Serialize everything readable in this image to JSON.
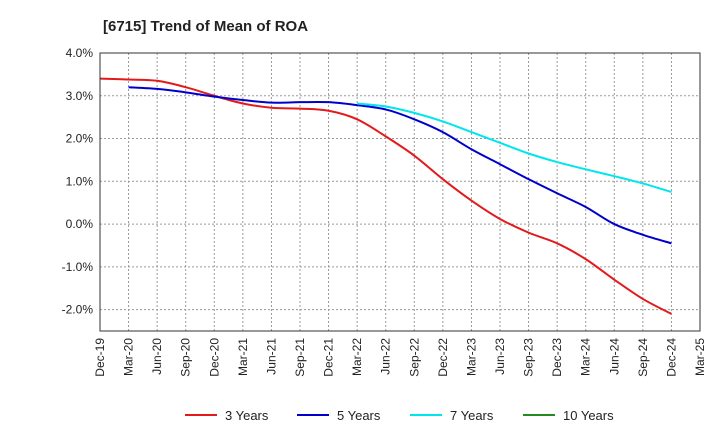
{
  "chart_data": {
    "type": "line",
    "title": "[6715]  Trend of Mean of ROA",
    "xlabel": "",
    "ylabel": "",
    "ylim": [
      -2.5,
      4.0
    ],
    "yticks": [
      4.0,
      3.0,
      2.0,
      1.0,
      0.0,
      -1.0,
      -2.0
    ],
    "ytick_labels": [
      "4.0%",
      "3.0%",
      "2.0%",
      "1.0%",
      "0.0%",
      "-1.0%",
      "-2.0%"
    ],
    "x_tick_labels": [
      "Dec-19",
      "Mar-20",
      "Jun-20",
      "Sep-20",
      "Dec-20",
      "Mar-21",
      "Jun-21",
      "Sep-21",
      "Dec-21",
      "Mar-22",
      "Jun-22",
      "Sep-22",
      "Dec-22",
      "Mar-23",
      "Jun-23",
      "Sep-23",
      "Dec-23",
      "Mar-24",
      "Jun-24",
      "Sep-24",
      "Dec-24",
      "Mar-25"
    ],
    "grid": true,
    "legend_position": "bottom",
    "series": [
      {
        "name": "3 Years",
        "color": "#e31a1c",
        "values": [
          3.4,
          3.38,
          3.35,
          3.2,
          3.0,
          2.82,
          2.72,
          2.7,
          2.65,
          2.45,
          2.05,
          1.6,
          1.05,
          0.55,
          0.12,
          -0.2,
          -0.45,
          -0.82,
          -1.3,
          -1.75,
          -2.1,
          null
        ]
      },
      {
        "name": "5 Years",
        "color": "#0000cd",
        "values": [
          null,
          3.2,
          3.16,
          3.08,
          2.98,
          2.9,
          2.84,
          2.85,
          2.85,
          2.78,
          2.68,
          2.45,
          2.15,
          1.75,
          1.4,
          1.05,
          0.72,
          0.4,
          0.0,
          -0.25,
          -0.45,
          null
        ]
      },
      {
        "name": "7 Years",
        "color": "#00e5ee",
        "values": [
          null,
          null,
          null,
          null,
          null,
          null,
          null,
          null,
          null,
          2.82,
          2.75,
          2.6,
          2.4,
          2.15,
          1.9,
          1.65,
          1.45,
          1.28,
          1.12,
          0.95,
          0.75,
          null
        ]
      },
      {
        "name": "10 Years",
        "color": "#228b22",
        "values": []
      }
    ]
  }
}
